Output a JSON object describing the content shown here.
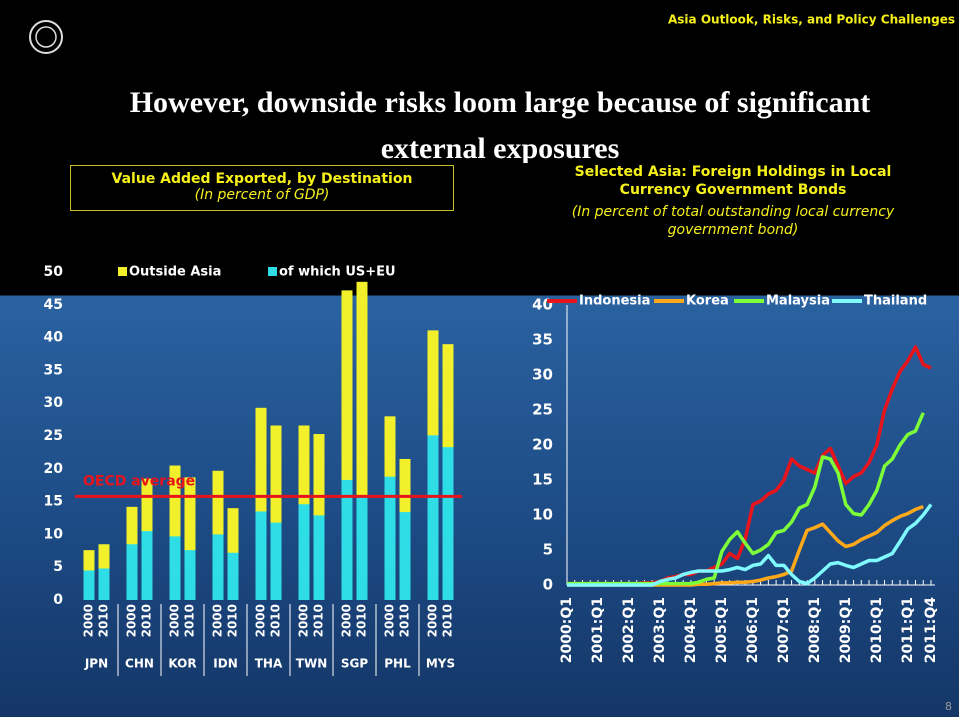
{
  "header": {
    "subtitle": "Asia Outlook, Risks, and Policy Challenges",
    "title": "However, downside risks loom large because of significant external exposures",
    "page_number": "8"
  },
  "chart_data": [
    {
      "type": "bar",
      "mode": "overlap",
      "title": "Value Added Exported, by Destination",
      "subtitle": "(In percent of GDP)",
      "categories": [
        "2000",
        "2010",
        "2000",
        "2010",
        "2000",
        "2010",
        "2000",
        "2010",
        "2000",
        "2010",
        "2000",
        "2010",
        "2000",
        "2010",
        "2000",
        "2010",
        "2000",
        "2010"
      ],
      "groups": [
        "JPN",
        "CHN",
        "KOR",
        "IDN",
        "THA",
        "TWN",
        "SGP",
        "PHL",
        "MYS"
      ],
      "series": [
        {
          "name": "Outside Asia",
          "color": "#f2f02a",
          "values": [
            7.6,
            8.5,
            14.2,
            18.5,
            20.5,
            18.7,
            19.7,
            14,
            29.3,
            26.6,
            26.6,
            25.3,
            47.2,
            48.5,
            28,
            21.5,
            41.1,
            39
          ]
        },
        {
          "name": "of which US+EU",
          "color": "#2fdde6",
          "values": [
            4.5,
            4.8,
            8.5,
            10.5,
            9.7,
            7.6,
            10,
            7.2,
            13.5,
            11.8,
            14.6,
            12.9,
            18.3,
            16,
            18.8,
            13.4,
            25.1,
            23.3
          ]
        }
      ],
      "reference_line": {
        "label": "OECD average",
        "value": 15.8,
        "color": "#e8141c"
      },
      "ylim": [
        0,
        50
      ],
      "yticks": [
        0,
        5,
        10,
        15,
        20,
        25,
        30,
        35,
        40,
        45,
        50
      ]
    },
    {
      "type": "line",
      "title": "Selected Asia: Foreign Holdings in Local Currency Government Bonds",
      "subtitle": "(In percent of total outstanding local currency government bond)",
      "categories": [
        "2000:Q1",
        null,
        null,
        null,
        "2001:Q1",
        null,
        null,
        null,
        "2002:Q1",
        null,
        null,
        null,
        "2003:Q1",
        null,
        null,
        null,
        "2004:Q1",
        null,
        null,
        null,
        "2005:Q1",
        null,
        null,
        null,
        "2006:Q1",
        null,
        null,
        null,
        "2007:Q1",
        null,
        null,
        null,
        "2008:Q1",
        null,
        null,
        null,
        "2009:Q1",
        null,
        null,
        null,
        "2010:Q1",
        null,
        null,
        null,
        "2011:Q1",
        null,
        null,
        "2011:Q4"
      ],
      "series": [
        {
          "name": "Indonesia",
          "color": "#e8141c",
          "values": [
            0.2,
            0.2,
            0.2,
            0.2,
            0.2,
            0.2,
            0.2,
            0.2,
            0.2,
            0.2,
            0.3,
            0.3,
            0.5,
            1,
            1.2,
            1.5,
            1.5,
            2,
            2,
            2.5,
            3,
            4.5,
            3.8,
            6.5,
            11.5,
            12,
            13,
            13.5,
            15,
            18,
            17,
            16.5,
            16,
            18.5,
            19.5,
            17,
            14.5,
            15.5,
            16,
            17.5,
            20,
            25,
            28,
            30.5,
            32,
            34,
            31.5,
            31
          ]
        },
        {
          "name": "Korea",
          "color": "#ffa81a",
          "values": [
            0,
            0,
            0,
            0,
            0,
            0,
            0,
            0,
            0,
            0,
            0,
            0,
            0,
            0,
            0,
            0,
            0,
            0.1,
            0.1,
            0.2,
            0.3,
            0.3,
            0.4,
            0.4,
            0.5,
            0.7,
            1,
            1.2,
            1.5,
            2,
            5,
            7.8,
            8.2,
            8.7,
            7.5,
            6.3,
            5.5,
            5.8,
            6.5,
            7,
            7.5,
            8.5,
            9.2,
            9.8,
            10.2,
            10.8,
            11.2,
            null
          ]
        },
        {
          "name": "Malaysia",
          "color": "#7dff3a",
          "values": [
            0.2,
            0.2,
            0.2,
            0.2,
            0.2,
            0.2,
            0.2,
            0.2,
            0.2,
            0.2,
            0.2,
            0.2,
            0.2,
            0.2,
            0.2,
            0.2,
            0.2,
            0.4,
            0.8,
            1,
            4.8,
            6.5,
            7.6,
            6,
            4.5,
            5,
            5.8,
            7.5,
            7.8,
            9,
            11,
            11.5,
            14,
            18.3,
            18,
            16,
            11.5,
            10.2,
            10,
            11.5,
            13.5,
            17,
            18,
            20,
            21.5,
            22,
            24.6,
            null
          ]
        },
        {
          "name": "Thailand",
          "color": "#7ffbff",
          "values": [
            0,
            0,
            0,
            0,
            0,
            0,
            0,
            0,
            0,
            0,
            0,
            0,
            0.5,
            0.8,
            1,
            1.5,
            1.8,
            2,
            2,
            2,
            2,
            2.2,
            2.5,
            2.2,
            2.8,
            3,
            4.2,
            2.8,
            2.8,
            1.5,
            0.5,
            0.2,
            1,
            2,
            3,
            3.2,
            2.8,
            2.5,
            3,
            3.5,
            3.5,
            4,
            4.5,
            6.2,
            8,
            8.8,
            10,
            11.5
          ]
        }
      ],
      "ylim": [
        0,
        40
      ],
      "yticks": [
        0,
        5,
        10,
        15,
        20,
        25,
        30,
        35,
        40
      ]
    }
  ]
}
